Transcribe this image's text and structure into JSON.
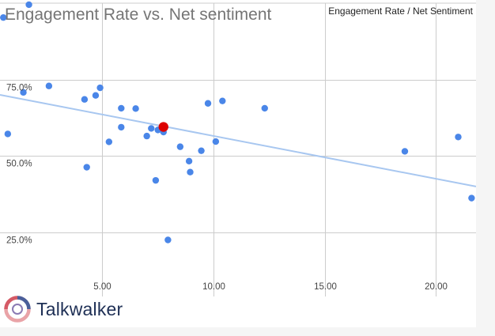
{
  "chart_data": {
    "type": "scatter",
    "title": "Engagement Rate vs. Net sentiment",
    "legend": "Engagement Rate / Net Sentiment",
    "xlabel": "",
    "ylabel": "",
    "xlim": [
      0.4,
      21.8
    ],
    "ylim": [
      0.04,
      1.0
    ],
    "x_ticks": [
      5,
      10,
      15,
      20
    ],
    "x_tick_labels": [
      "5.00",
      "10.00",
      "15.00",
      "20.00"
    ],
    "y_ticks": [
      0.25,
      0.5,
      0.75
    ],
    "y_tick_labels": [
      "25.0%",
      "50.0%",
      "75.0%"
    ],
    "grid": true,
    "colors": {
      "points": "#4a86e8",
      "highlight": "#dd0000",
      "trend": "#a8c7f0",
      "grid": "#cccccc"
    },
    "points": [
      {
        "x": 0.55,
        "y": 0.953
      },
      {
        "x": 1.7,
        "y": 0.995
      },
      {
        "x": 1.45,
        "y": 0.708
      },
      {
        "x": 0.75,
        "y": 0.572
      },
      {
        "x": 2.6,
        "y": 0.729
      },
      {
        "x": 4.2,
        "y": 0.685
      },
      {
        "x": 4.7,
        "y": 0.698
      },
      {
        "x": 4.9,
        "y": 0.723
      },
      {
        "x": 4.3,
        "y": 0.463
      },
      {
        "x": 5.3,
        "y": 0.546
      },
      {
        "x": 5.85,
        "y": 0.656
      },
      {
        "x": 5.85,
        "y": 0.594
      },
      {
        "x": 6.5,
        "y": 0.655
      },
      {
        "x": 7.0,
        "y": 0.565
      },
      {
        "x": 7.2,
        "y": 0.59
      },
      {
        "x": 7.5,
        "y": 0.585
      },
      {
        "x": 7.75,
        "y": 0.578
      },
      {
        "x": 7.4,
        "y": 0.42
      },
      {
        "x": 7.95,
        "y": 0.225
      },
      {
        "x": 8.5,
        "y": 0.53
      },
      {
        "x": 8.9,
        "y": 0.483
      },
      {
        "x": 8.95,
        "y": 0.447
      },
      {
        "x": 9.45,
        "y": 0.517
      },
      {
        "x": 9.75,
        "y": 0.672
      },
      {
        "x": 10.1,
        "y": 0.547
      },
      {
        "x": 10.4,
        "y": 0.68
      },
      {
        "x": 12.3,
        "y": 0.656
      },
      {
        "x": 18.6,
        "y": 0.515
      },
      {
        "x": 21.0,
        "y": 0.562
      },
      {
        "x": 21.6,
        "y": 0.362
      }
    ],
    "highlight": {
      "x": 7.75,
      "y": 0.595
    },
    "trendline": {
      "x": [
        0.4,
        21.8
      ],
      "y": [
        0.7,
        0.4
      ]
    }
  },
  "brand": {
    "name": "Talkwalker"
  }
}
